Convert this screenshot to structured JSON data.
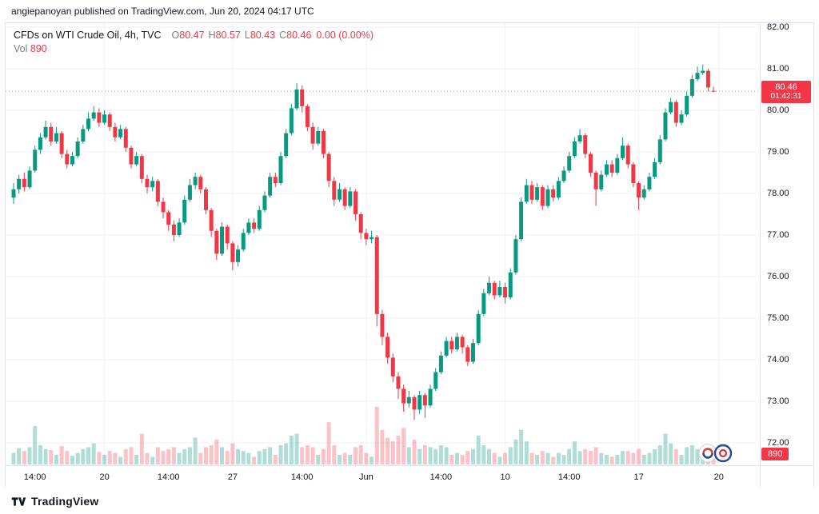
{
  "header": {
    "attribution": "angiepanoyan published on TradingView.com, Jun 20, 2024 04:17 UTC"
  },
  "legend": {
    "symbol_title": "CFDs on WTI Crude Oil, 4h, TVC",
    "ohlc": [
      {
        "label": "O",
        "value": "80.47"
      },
      {
        "label": "H",
        "value": "80.57"
      },
      {
        "label": "L",
        "value": "80.43"
      },
      {
        "label": "C",
        "value": "80.46"
      }
    ],
    "change": "0.00 (0.00%)",
    "vol_label": "Vol",
    "vol_value": "890"
  },
  "price_badge": {
    "price": "80.46",
    "countdown": "01:42:31"
  },
  "volume_badge": {
    "value": "890"
  },
  "footer": {
    "brand": "TradingView"
  },
  "colors": {
    "up": "#089981",
    "down": "#f23645",
    "volume_up": "rgba(8,153,129,0.32)",
    "volume_down": "rgba(242,54,69,0.30)",
    "grid": "#f0f2f5",
    "accent_red": "#f23645"
  },
  "chart_data": {
    "type": "candlestick",
    "symbol": "CFDs on WTI Crude Oil",
    "interval": "4h",
    "exchange": "TVC",
    "last": {
      "o": 80.47,
      "h": 80.57,
      "l": 80.43,
      "c": 80.46,
      "change": "0.00 (0.00%)",
      "volume": 890
    },
    "price_axis": {
      "ticks": [
        82,
        81,
        80,
        79,
        78,
        77,
        76,
        75,
        74,
        73,
        72
      ]
    },
    "time_ticks": [
      {
        "i": 4,
        "label": "14:00",
        "major": false
      },
      {
        "i": 17,
        "label": "20",
        "major": true
      },
      {
        "i": 29,
        "label": "14:00",
        "major": false
      },
      {
        "i": 41,
        "label": "27",
        "major": true
      },
      {
        "i": 54,
        "label": "14:00",
        "major": false
      },
      {
        "i": 66,
        "label": "Jun",
        "major": true
      },
      {
        "i": 80,
        "label": "14:00",
        "major": false
      },
      {
        "i": 92,
        "label": "10",
        "major": true
      },
      {
        "i": 104,
        "label": "14:00",
        "major": false
      },
      {
        "i": 117,
        "label": "17",
        "major": true
      },
      {
        "i": 132,
        "label": "20",
        "major": true
      }
    ],
    "candles": [
      [
        77.9,
        78.25,
        77.75,
        78.1,
        600
      ],
      [
        78.1,
        78.45,
        78.0,
        78.35,
        850
      ],
      [
        78.35,
        78.5,
        78.05,
        78.15,
        700
      ],
      [
        78.15,
        78.65,
        78.1,
        78.55,
        900
      ],
      [
        78.55,
        79.15,
        78.5,
        79.05,
        2000
      ],
      [
        79.05,
        79.45,
        78.95,
        79.35,
        1000
      ],
      [
        79.35,
        79.75,
        79.3,
        79.6,
        800
      ],
      [
        79.6,
        79.7,
        79.15,
        79.25,
        750
      ],
      [
        79.25,
        79.6,
        79.2,
        79.45,
        500
      ],
      [
        79.45,
        79.5,
        78.85,
        78.95,
        950
      ],
      [
        78.95,
        79.05,
        78.6,
        78.7,
        700
      ],
      [
        78.7,
        79.0,
        78.65,
        78.9,
        450
      ],
      [
        78.9,
        79.35,
        78.85,
        79.25,
        600
      ],
      [
        79.25,
        79.65,
        79.2,
        79.55,
        800
      ],
      [
        79.55,
        79.95,
        79.5,
        79.8,
        900
      ],
      [
        79.8,
        80.1,
        79.75,
        79.95,
        1100
      ],
      [
        79.95,
        80.05,
        79.6,
        79.7,
        650
      ],
      [
        79.7,
        80.0,
        79.65,
        79.9,
        500
      ],
      [
        79.9,
        79.95,
        79.5,
        79.6,
        700
      ],
      [
        79.6,
        79.7,
        79.25,
        79.35,
        600
      ],
      [
        79.35,
        79.65,
        79.3,
        79.55,
        400
      ],
      [
        79.55,
        79.6,
        79.0,
        79.1,
        800
      ],
      [
        79.1,
        79.15,
        78.6,
        78.7,
        900
      ],
      [
        78.7,
        79.0,
        78.65,
        78.9,
        500
      ],
      [
        78.9,
        78.95,
        78.25,
        78.35,
        1600
      ],
      [
        78.35,
        78.45,
        78.0,
        78.15,
        600
      ],
      [
        78.15,
        78.4,
        78.05,
        78.3,
        400
      ],
      [
        78.3,
        78.35,
        77.7,
        77.8,
        900
      ],
      [
        77.8,
        77.9,
        77.4,
        77.55,
        700
      ],
      [
        77.55,
        77.6,
        77.1,
        77.25,
        800
      ],
      [
        77.25,
        77.35,
        76.85,
        77.0,
        900
      ],
      [
        77.0,
        77.4,
        76.95,
        77.3,
        600
      ],
      [
        77.3,
        77.95,
        77.25,
        77.85,
        800
      ],
      [
        77.85,
        78.35,
        77.8,
        78.2,
        900
      ],
      [
        78.2,
        78.5,
        78.1,
        78.4,
        1400
      ],
      [
        78.4,
        78.45,
        78.0,
        78.1,
        600
      ],
      [
        78.1,
        78.15,
        77.5,
        77.6,
        900
      ],
      [
        77.6,
        77.65,
        76.95,
        77.1,
        1000
      ],
      [
        77.1,
        77.15,
        76.4,
        76.55,
        1300
      ],
      [
        76.55,
        77.3,
        76.5,
        77.2,
        900
      ],
      [
        77.2,
        77.25,
        76.65,
        76.8,
        700
      ],
      [
        76.8,
        76.85,
        76.15,
        76.35,
        1100
      ],
      [
        76.35,
        76.75,
        76.25,
        76.65,
        800
      ],
      [
        76.65,
        77.15,
        76.6,
        77.05,
        700
      ],
      [
        77.05,
        77.4,
        77.0,
        77.3,
        600
      ],
      [
        77.3,
        77.4,
        77.05,
        77.15,
        400
      ],
      [
        77.15,
        77.7,
        77.1,
        77.6,
        700
      ],
      [
        77.6,
        78.05,
        77.55,
        77.95,
        800
      ],
      [
        77.95,
        78.5,
        77.9,
        78.4,
        900
      ],
      [
        78.4,
        78.5,
        78.15,
        78.25,
        500
      ],
      [
        78.25,
        79.0,
        78.2,
        78.9,
        1000
      ],
      [
        78.9,
        79.55,
        78.85,
        79.45,
        1100
      ],
      [
        79.45,
        80.15,
        79.4,
        80.05,
        1500
      ],
      [
        80.05,
        80.65,
        80.0,
        80.5,
        1600
      ],
      [
        80.5,
        80.6,
        79.95,
        80.1,
        900
      ],
      [
        80.1,
        80.15,
        79.5,
        79.6,
        1000
      ],
      [
        79.6,
        79.7,
        79.05,
        79.2,
        900
      ],
      [
        79.2,
        79.6,
        79.15,
        79.5,
        500
      ],
      [
        79.5,
        79.55,
        78.85,
        78.95,
        800
      ],
      [
        78.95,
        79.0,
        78.15,
        78.3,
        2200
      ],
      [
        78.3,
        78.4,
        77.7,
        77.85,
        1000
      ],
      [
        77.85,
        78.25,
        77.8,
        78.1,
        500
      ],
      [
        78.1,
        78.15,
        77.6,
        77.7,
        600
      ],
      [
        77.7,
        78.15,
        77.65,
        78.05,
        500
      ],
      [
        78.05,
        78.1,
        77.35,
        77.5,
        900
      ],
      [
        77.5,
        77.55,
        76.9,
        77.05,
        1000
      ],
      [
        77.05,
        77.15,
        76.75,
        76.9,
        600
      ],
      [
        76.9,
        77.1,
        76.8,
        76.95,
        400
      ],
      [
        76.95,
        77.0,
        74.8,
        75.1,
        3000
      ],
      [
        75.1,
        75.2,
        74.35,
        74.55,
        1800
      ],
      [
        74.55,
        74.65,
        73.9,
        74.05,
        1400
      ],
      [
        74.05,
        74.15,
        73.45,
        73.6,
        1200
      ],
      [
        73.6,
        73.7,
        73.05,
        73.3,
        1500
      ],
      [
        73.3,
        73.4,
        72.75,
        72.95,
        1900
      ],
      [
        72.95,
        73.25,
        72.85,
        73.1,
        900
      ],
      [
        73.1,
        73.15,
        72.55,
        72.8,
        1300
      ],
      [
        72.8,
        73.25,
        72.7,
        73.15,
        800
      ],
      [
        73.15,
        73.2,
        72.6,
        72.9,
        1000
      ],
      [
        72.9,
        73.4,
        72.85,
        73.3,
        900
      ],
      [
        73.3,
        73.8,
        73.25,
        73.7,
        800
      ],
      [
        73.7,
        74.2,
        73.65,
        74.1,
        1000
      ],
      [
        74.1,
        74.55,
        74.05,
        74.45,
        900
      ],
      [
        74.45,
        74.55,
        74.15,
        74.25,
        500
      ],
      [
        74.25,
        74.65,
        74.2,
        74.55,
        600
      ],
      [
        74.55,
        74.6,
        74.15,
        74.3,
        500
      ],
      [
        74.3,
        74.35,
        73.85,
        73.95,
        700
      ],
      [
        73.95,
        74.5,
        73.9,
        74.4,
        800
      ],
      [
        74.4,
        75.2,
        74.35,
        75.1,
        1500
      ],
      [
        75.1,
        75.7,
        75.05,
        75.6,
        1000
      ],
      [
        75.6,
        76.0,
        75.55,
        75.85,
        800
      ],
      [
        75.85,
        75.9,
        75.45,
        75.55,
        600
      ],
      [
        75.55,
        75.9,
        75.5,
        75.75,
        400
      ],
      [
        75.75,
        75.85,
        75.35,
        75.5,
        600
      ],
      [
        75.5,
        76.2,
        75.45,
        76.1,
        900
      ],
      [
        76.1,
        77.0,
        76.05,
        76.9,
        1300
      ],
      [
        76.9,
        77.9,
        76.85,
        77.8,
        1800
      ],
      [
        77.8,
        78.35,
        77.75,
        78.2,
        1200
      ],
      [
        78.2,
        78.3,
        77.75,
        77.85,
        600
      ],
      [
        77.85,
        78.25,
        77.8,
        78.15,
        500
      ],
      [
        78.15,
        78.2,
        77.6,
        77.7,
        700
      ],
      [
        77.7,
        78.2,
        77.65,
        78.1,
        600
      ],
      [
        78.1,
        78.2,
        77.8,
        77.9,
        400
      ],
      [
        77.9,
        78.4,
        77.85,
        78.3,
        600
      ],
      [
        78.3,
        78.65,
        78.25,
        78.55,
        500
      ],
      [
        78.55,
        79.0,
        78.5,
        78.9,
        800
      ],
      [
        78.9,
        79.35,
        78.85,
        79.25,
        1200
      ],
      [
        79.25,
        79.55,
        79.2,
        79.4,
        700
      ],
      [
        79.4,
        79.45,
        78.85,
        78.95,
        800
      ],
      [
        78.95,
        79.0,
        78.4,
        78.5,
        700
      ],
      [
        78.5,
        78.55,
        77.7,
        78.1,
        900
      ],
      [
        78.1,
        78.55,
        78.05,
        78.45,
        600
      ],
      [
        78.45,
        78.8,
        78.4,
        78.7,
        500
      ],
      [
        78.7,
        78.8,
        78.4,
        78.5,
        400
      ],
      [
        78.5,
        78.95,
        78.45,
        78.85,
        500
      ],
      [
        78.85,
        79.35,
        78.8,
        79.15,
        700
      ],
      [
        79.15,
        79.2,
        78.6,
        78.7,
        700
      ],
      [
        78.7,
        78.75,
        78.15,
        78.25,
        600
      ],
      [
        78.25,
        78.3,
        77.6,
        77.9,
        800
      ],
      [
        77.9,
        78.2,
        77.85,
        78.1,
        500
      ],
      [
        78.1,
        78.5,
        78.05,
        78.4,
        600
      ],
      [
        78.4,
        78.85,
        78.35,
        78.75,
        800
      ],
      [
        78.75,
        79.4,
        78.7,
        79.3,
        1000
      ],
      [
        79.3,
        80.05,
        79.25,
        79.95,
        1600
      ],
      [
        79.95,
        80.3,
        79.9,
        80.2,
        1100
      ],
      [
        80.2,
        80.25,
        79.6,
        79.7,
        800
      ],
      [
        79.7,
        80.0,
        79.65,
        79.9,
        500
      ],
      [
        79.9,
        80.45,
        79.85,
        80.35,
        900
      ],
      [
        80.35,
        80.85,
        80.3,
        80.75,
        1000
      ],
      [
        80.75,
        81.05,
        80.7,
        80.9,
        800
      ],
      [
        80.9,
        81.1,
        80.85,
        80.95,
        600
      ],
      [
        80.95,
        81.0,
        80.45,
        80.55,
        500
      ],
      [
        80.47,
        80.57,
        80.43,
        80.46,
        890
      ]
    ]
  }
}
